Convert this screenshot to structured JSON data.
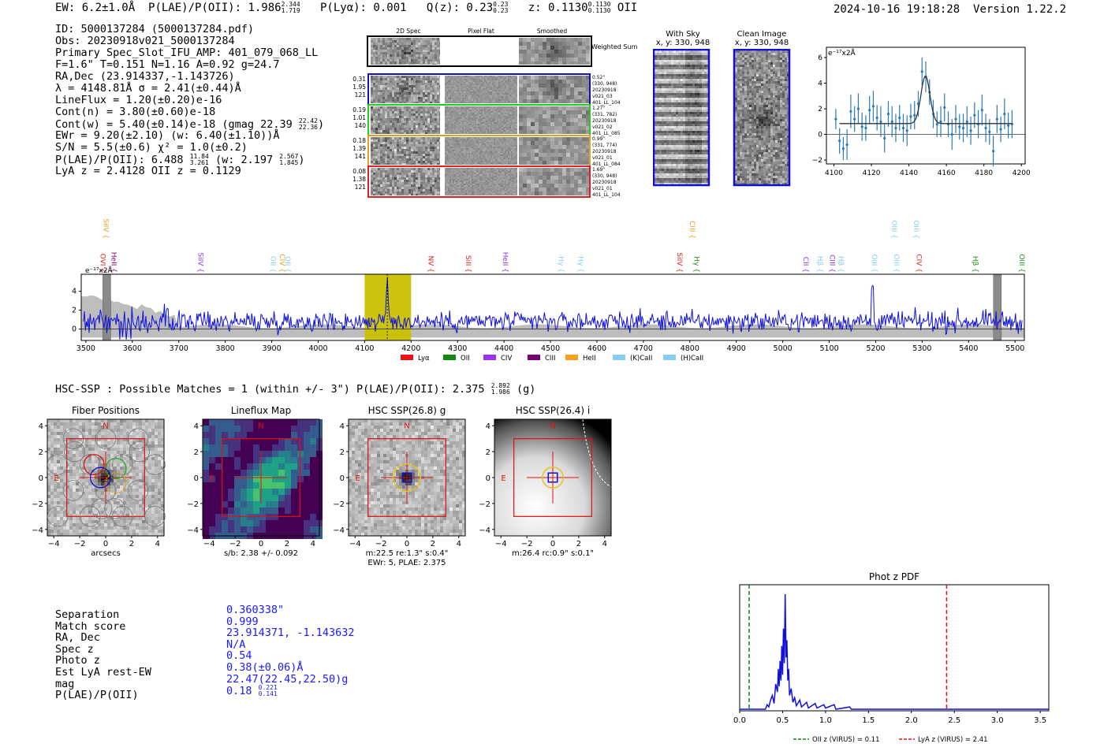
{
  "header": {
    "ew": "EW: 6.2±1.0Å",
    "plae_label": "P(LAE)/P(OII): 1.986",
    "plae_hi": "2.344",
    "plae_lo": "1.719",
    "plya": "P(Lyα): 0.001",
    "qz_label": "Q(z): 0.23",
    "qz_hi": "0.23",
    "qz_lo": "0.23",
    "z_label": "z: 0.1130",
    "z_hi": "0.1130",
    "z_lo": "0.1130",
    "z_line": "OII",
    "datetime": "2024-10-16 19:18:28",
    "version": "Version 1.22.2"
  },
  "detection": {
    "id": "ID: 5000137284 (5000137284.pdf)",
    "obs": "Obs: 20230918v021_5000137284",
    "primary": "Primary Spec_Slot_IFU_AMP: 401_079_068_LL",
    "fiber_params": "F=1.6\"  T=0.151  N=1.16  A=0.92  g=24.7",
    "radec": "RA,Dec (23.914337,-1.143726)",
    "lambda_sigma": "λ = 4148.81Å  σ = 2.41(±0.44)Å",
    "lineflux": "LineFlux = 1.20(±0.20)e-16",
    "contn": "Cont(n) = 3.80(±0.60)e-18",
    "contw_label": "Cont(w) = 5.40(±0.14)e-18 (gmag 22.39",
    "contw_hi": "22.42",
    "contw_lo": "22.36",
    "ewr": "EWr = 9.20(±2.10) (w: 6.40(±1.10))Å",
    "sn": "S/N = 5.5(±0.6)  χ² = 1.0(±0.2)",
    "plae_label": "P(LAE)/P(OII): 6.488",
    "plae_hi": "11.84",
    "plae_lo": "3.261",
    "plae_w_label": "(w: 2.197",
    "plae_w_hi": "2.567",
    "plae_w_lo": "1.845",
    "lya_oii": "LyA z = 2.4128   OII z = 0.1129"
  },
  "cutouts": {
    "col_headers": [
      "2D Spec",
      "Pixel Flat",
      "Smoothed"
    ],
    "weighted_sum": "Weighted Sum",
    "rows": [
      {
        "left": [
          "0.31",
          "1.95",
          "121"
        ],
        "right": [
          "0.52\"",
          "(330, 948)",
          "20230918",
          "v021_03",
          "401_LL_104"
        ],
        "color": "#1010d0"
      },
      {
        "left": [
          "0.19",
          "1.01",
          "140"
        ],
        "right": [
          "1.27\"",
          "(331, 782)",
          "20230918",
          "v021_02",
          "401_LL_085"
        ],
        "color": "#22cc22"
      },
      {
        "left": [
          "0.18",
          "1.39",
          "141"
        ],
        "right": [
          "0.99\"",
          "(331, 774)",
          "20230918",
          "v021_01",
          "401_LL_084"
        ],
        "color": "#e0a020"
      },
      {
        "left": [
          "0.08",
          "1.38",
          "121"
        ],
        "right": [
          "1.69\"",
          "(330, 948)",
          "20230918",
          "v021_01",
          "401_LL_104"
        ],
        "color": "#e02020"
      }
    ],
    "with_sky_title": "With Sky",
    "with_sky_xy": "x, y: 330, 948",
    "clean_title": "Clean Image",
    "clean_xy": "x, y: 330, 948"
  },
  "zoom_spectrum": {
    "unit": "e⁻¹⁷x2Å",
    "x_ticks": [
      "4100",
      "4120",
      "4140",
      "4160",
      "4180",
      "4200"
    ],
    "y_ticks": [
      "−2",
      "0",
      "2",
      "4",
      "6"
    ],
    "xlim": [
      4096,
      4202
    ],
    "ylim": [
      -2.3,
      6.8
    ],
    "points": [
      [
        4101,
        1.2,
        0.8
      ],
      [
        4103,
        -0.5,
        1.0
      ],
      [
        4105,
        -1.1,
        0.9
      ],
      [
        4107,
        -0.8,
        1.2
      ],
      [
        4109,
        1.8,
        1.3
      ],
      [
        4111,
        1.2,
        1.0
      ],
      [
        4113,
        2.0,
        1.2
      ],
      [
        4115,
        0.6,
        1.1
      ],
      [
        4117,
        0.5,
        1.0
      ],
      [
        4119,
        1.9,
        1.1
      ],
      [
        4121,
        2.2,
        1.2
      ],
      [
        4123,
        1.3,
        1.0
      ],
      [
        4125,
        1.0,
        1.2
      ],
      [
        4127,
        -0.3,
        1.1
      ],
      [
        4129,
        1.6,
        1.0
      ],
      [
        4131,
        1.0,
        1.2
      ],
      [
        4133,
        0.5,
        1.1
      ],
      [
        4135,
        1.3,
        1.0
      ],
      [
        4137,
        0.5,
        1.1
      ],
      [
        4139,
        0.3,
        1.2
      ],
      [
        4141,
        1.4,
        1.0
      ],
      [
        4143,
        1.5,
        1.1
      ],
      [
        4145,
        2.4,
        1.0
      ],
      [
        4147,
        4.9,
        1.1
      ],
      [
        4149,
        4.5,
        1.2
      ],
      [
        4151,
        3.3,
        1.0
      ],
      [
        4153,
        1.6,
        1.1
      ],
      [
        4155,
        0.8,
        1.0
      ],
      [
        4157,
        1.0,
        1.2
      ],
      [
        4159,
        2.1,
        1.1
      ],
      [
        4161,
        0.8,
        1.0
      ],
      [
        4163,
        0.0,
        1.2
      ],
      [
        4165,
        1.2,
        1.1
      ],
      [
        4167,
        0.6,
        1.0
      ],
      [
        4169,
        0.5,
        1.1
      ],
      [
        4171,
        1.0,
        1.2
      ],
      [
        4173,
        0.3,
        1.1
      ],
      [
        4175,
        1.5,
        1.0
      ],
      [
        4177,
        0.8,
        1.1
      ],
      [
        4179,
        1.9,
        1.2
      ],
      [
        4181,
        0.5,
        1.1
      ],
      [
        4183,
        0.2,
        1.0
      ],
      [
        4185,
        -1.3,
        1.2
      ],
      [
        4187,
        1.2,
        1.1
      ],
      [
        4189,
        0.4,
        1.0
      ],
      [
        4191,
        1.6,
        1.2
      ],
      [
        4193,
        0.7,
        1.0
      ],
      [
        4195,
        0.8,
        1.1
      ]
    ],
    "fit": {
      "continuum": 0.85,
      "center": 4148.81,
      "sigma": 2.41,
      "amp": 3.7
    }
  },
  "main_spectrum": {
    "unit": "e⁻¹⁷x2Å",
    "x_ticks": [
      "3500",
      "3600",
      "3700",
      "3800",
      "3900",
      "4000",
      "4100",
      "4200",
      "4300",
      "4400",
      "4500",
      "4600",
      "4700",
      "4800",
      "4900",
      "5000",
      "5100",
      "5200",
      "5300",
      "5400",
      "5500"
    ],
    "y_ticks": [
      "0",
      "2",
      "4"
    ],
    "xlim": [
      3490,
      5520
    ],
    "ylim": [
      -1.2,
      5.8
    ],
    "highlight_range": [
      4100,
      4200
    ],
    "line_center": 4148.81,
    "masked": [
      3545,
      5462
    ],
    "line_labels": [
      {
        "name": "SiIV",
        "w": 3538,
        "color": "#e0a020",
        "row": 0
      },
      {
        "name": "OVI",
        "w": 3532,
        "color": "#dd2222",
        "row": 1
      },
      {
        "name": "HeII",
        "w": 3555,
        "color": "#880088",
        "row": 1
      },
      {
        "name": "SiIV",
        "w": 3742,
        "color": "#8833ee",
        "row": 1
      },
      {
        "name": "OII",
        "w": 3898,
        "color": "#88ccee",
        "row": 1
      },
      {
        "name": "CIV",
        "w": 3918,
        "color": "#e0a020",
        "row": 1
      },
      {
        "name": "OII",
        "w": 3930,
        "color": "#88ccee",
        "row": 1
      },
      {
        "name": "NV",
        "w": 4238,
        "color": "#dd2222",
        "row": 1
      },
      {
        "name": "SiII",
        "w": 4318,
        "color": "#dd2222",
        "row": 1
      },
      {
        "name": "HeII",
        "w": 4398,
        "color": "#8833ee",
        "row": 1
      },
      {
        "name": "Hγ",
        "w": 4518,
        "color": "#88ccee",
        "row": 1
      },
      {
        "name": "Hγ",
        "w": 4560,
        "color": "#88ccee",
        "row": 1
      },
      {
        "name": "SiIV",
        "w": 4773,
        "color": "#dd2222",
        "row": 1
      },
      {
        "name": "CIII",
        "w": 4800,
        "color": "#e0a020",
        "row": 0
      },
      {
        "name": "Hγ",
        "w": 4810,
        "color": "#228822",
        "row": 1
      },
      {
        "name": "CII",
        "w": 5045,
        "color": "#8833ee",
        "row": 1
      },
      {
        "name": "Hβ",
        "w": 5075,
        "color": "#88ccee",
        "row": 1
      },
      {
        "name": "CIII",
        "w": 5102,
        "color": "#8833ee",
        "row": 1
      },
      {
        "name": "Hβ",
        "w": 5120,
        "color": "#88ccee",
        "row": 1
      },
      {
        "name": "OIII",
        "w": 5192,
        "color": "#88ccee",
        "row": 1
      },
      {
        "name": "OIII",
        "w": 5235,
        "color": "#88ccee",
        "row": 0
      },
      {
        "name": "OIII",
        "w": 5240,
        "color": "#88ccee",
        "row": 1
      },
      {
        "name": "OIII",
        "w": 5282,
        "color": "#88ccee",
        "row": 0
      },
      {
        "name": "CIV",
        "w": 5288,
        "color": "#dd2222",
        "row": 1
      },
      {
        "name": "Hβ",
        "w": 5410,
        "color": "#228822",
        "row": 1
      },
      {
        "name": "OIII",
        "w": 5510,
        "color": "#228822",
        "row": 1
      }
    ],
    "legend": [
      {
        "label": "Lyα",
        "color": "#ee1111"
      },
      {
        "label": "OII",
        "color": "#118811"
      },
      {
        "label": "CIV",
        "color": "#9933ee"
      },
      {
        "label": "CIII",
        "color": "#770077"
      },
      {
        "label": "HeII",
        "color": "#f5a020"
      },
      {
        "label": "(K)CaII",
        "color": "#88ccee"
      },
      {
        "label": "(H)CaII",
        "color": "#88ccee"
      }
    ]
  },
  "hsc": {
    "summary": "HSC-SSP : Possible Matches = 1 (within +/- 3\")  P(LAE)/P(OII): 2.375",
    "summary_hi": "2.892",
    "summary_lo": "1.986",
    "summary_band": "(g)",
    "panels": [
      {
        "title": "Fiber Positions",
        "caption": "arcsecs",
        "caption2": ""
      },
      {
        "title": "Lineflux Map",
        "caption": "s/b: 2.38 +/- 0.092",
        "caption2": ""
      },
      {
        "title": "HSC SSP(26.8) g",
        "caption": "m:22.5  re:1.3\"  s:0.4\"",
        "caption2": "EWr: 5, PLAE: 2.375"
      },
      {
        "title": "HSC SSP(26.4) i",
        "caption": "m:26.4 rc:0.9\"  s:0.1\"",
        "caption2": ""
      }
    ],
    "axis_ticks": [
      "−4",
      "−2",
      "0",
      "2",
      "4"
    ],
    "compass_n": "N",
    "compass_e": "E"
  },
  "match": {
    "labels": [
      "Separation",
      "Match score",
      "RA, Dec",
      "Spec z",
      "Photo z",
      "Est LyA rest-EW",
      "mag",
      "P(LAE)/P(OII)"
    ],
    "values": [
      "0.360338\"",
      "0.999",
      "23.914371, -1.143632",
      "N/A",
      "0.54",
      "0.38(±0.06)Å",
      "22.47(22.45,22.50)g",
      "0.18"
    ],
    "plae_hi": "0.221",
    "plae_lo": "0.141"
  },
  "photz": {
    "title": "Phot z PDF",
    "x_ticks": [
      "0.0",
      "0.5",
      "1.0",
      "1.5",
      "2.0",
      "2.5",
      "3.0",
      "3.5"
    ],
    "xlim": [
      0,
      3.6
    ],
    "oii_z": 0.11,
    "lya_z": 2.41,
    "legend_oii": "OII z (VIRUS) = 0.11",
    "legend_lya": "LyA z (VIRUS) = 2.41",
    "pdf": [
      [
        0.0,
        0.0
      ],
      [
        0.3,
        0.0
      ],
      [
        0.32,
        0.04
      ],
      [
        0.34,
        0.02
      ],
      [
        0.36,
        0.08
      ],
      [
        0.38,
        0.12
      ],
      [
        0.4,
        0.05
      ],
      [
        0.42,
        0.22
      ],
      [
        0.44,
        0.15
      ],
      [
        0.45,
        0.35
      ],
      [
        0.46,
        0.2
      ],
      [
        0.47,
        0.42
      ],
      [
        0.48,
        0.25
      ],
      [
        0.49,
        0.55
      ],
      [
        0.5,
        0.3
      ],
      [
        0.51,
        0.7
      ],
      [
        0.52,
        0.4
      ],
      [
        0.53,
        1.0
      ],
      [
        0.54,
        0.45
      ],
      [
        0.55,
        0.6
      ],
      [
        0.56,
        0.25
      ],
      [
        0.57,
        0.35
      ],
      [
        0.58,
        0.12
      ],
      [
        0.6,
        0.18
      ],
      [
        0.62,
        0.06
      ],
      [
        0.64,
        0.1
      ],
      [
        0.66,
        0.03
      ],
      [
        0.7,
        0.08
      ],
      [
        0.72,
        0.02
      ],
      [
        0.78,
        0.06
      ],
      [
        0.8,
        0.01
      ],
      [
        0.88,
        0.05
      ],
      [
        0.9,
        0.01
      ],
      [
        0.98,
        0.04
      ],
      [
        1.0,
        0.01
      ],
      [
        1.1,
        0.04
      ],
      [
        1.12,
        0.0
      ],
      [
        1.28,
        0.02
      ],
      [
        1.3,
        0.0
      ],
      [
        3.6,
        0.0
      ]
    ]
  }
}
